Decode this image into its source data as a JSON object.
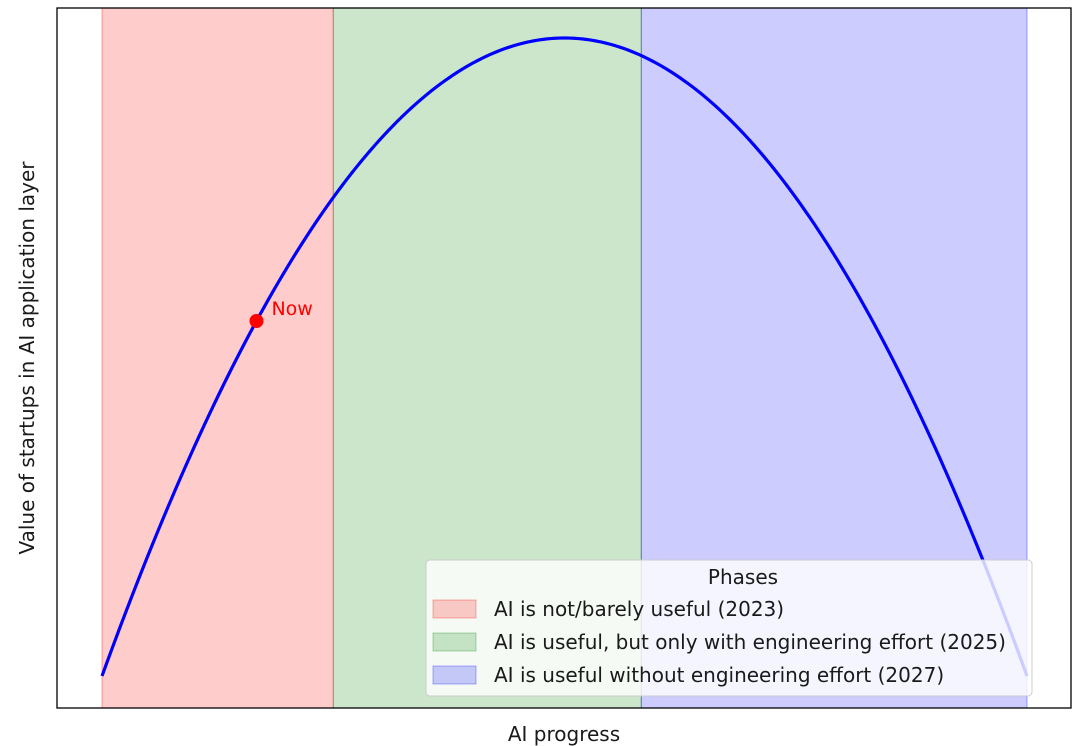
{
  "chart_data": {
    "type": "line",
    "title": "",
    "xlabel": "AI progress",
    "ylabel": "Value of startups in AI application layer",
    "xticks": "none",
    "yticks": "none",
    "grid": false,
    "phases": [
      {
        "label": "AI is not/barely useful (2023)",
        "x_start": 0.0,
        "x_end": 0.25,
        "color": "#ff0000",
        "opacity": 0.2
      },
      {
        "label": "AI is useful, but only with engineering effort (2025)",
        "x_start": 0.25,
        "x_end": 0.583,
        "color": "#008000",
        "opacity": 0.2
      },
      {
        "label": "AI is useful without engineering effort (2027)",
        "x_start": 0.583,
        "x_end": 1.0,
        "color": "#0000ff",
        "opacity": 0.2
      }
    ],
    "series": [
      {
        "color": "#0000ff",
        "function": "parabola",
        "x": [
          0.0,
          0.1,
          0.2,
          0.3,
          0.4,
          0.5,
          0.6,
          0.7,
          0.8,
          0.9,
          1.0
        ],
        "y": [
          0.0,
          0.36,
          0.64,
          0.84,
          0.96,
          1.0,
          0.96,
          0.84,
          0.64,
          0.36,
          0.0
        ]
      }
    ],
    "annotation": {
      "text": "Now",
      "x": 0.167,
      "y": 0.56,
      "color": "#ff0000"
    },
    "legend": {
      "title": "Phases",
      "position": "lower right"
    }
  }
}
